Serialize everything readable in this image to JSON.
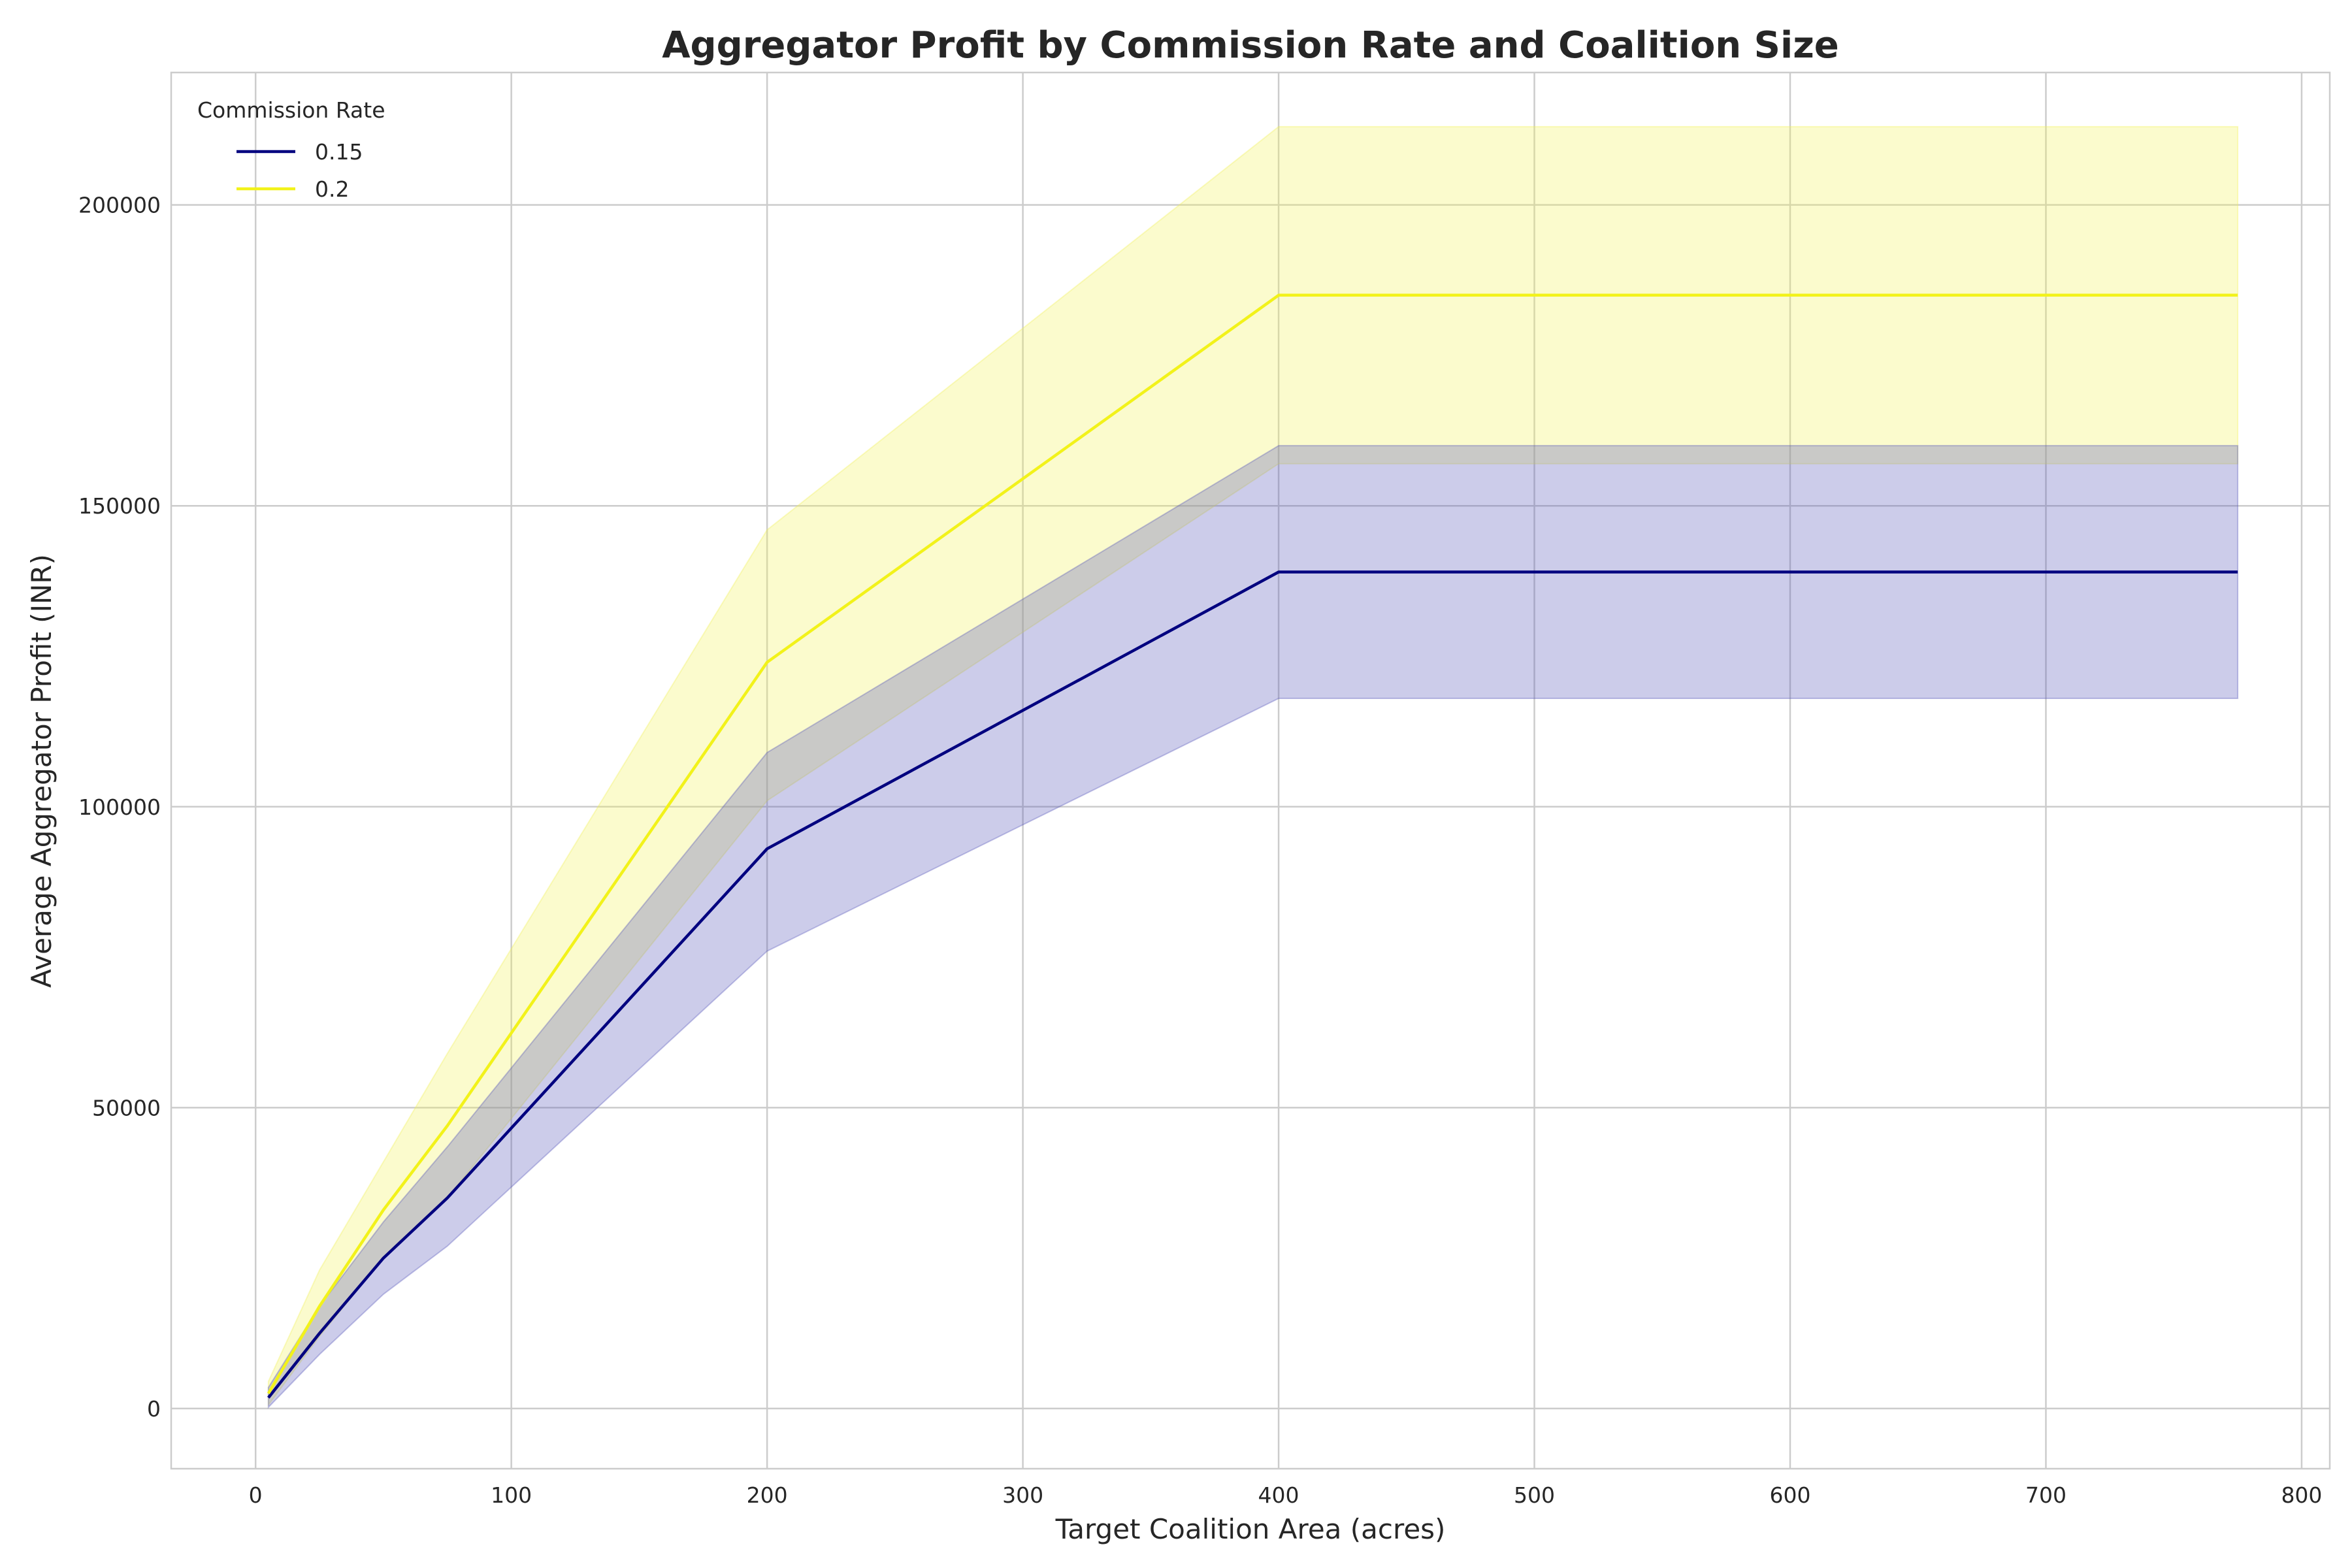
{
  "chart_data": {
    "type": "line",
    "title": "Aggregator Profit by Commission Rate and Coalition Size",
    "xlabel": "Target Coalition Area (acres)",
    "ylabel": "Average Aggregator Profit (INR)",
    "xlim": [
      -33,
      811
    ],
    "ylim": [
      -10000,
      222000
    ],
    "xticks": [
      0,
      100,
      200,
      300,
      400,
      500,
      600,
      700,
      800
    ],
    "yticks": [
      0,
      50000,
      100000,
      150000,
      200000
    ],
    "xtick_labels": [
      "0",
      "100",
      "200",
      "300",
      "400",
      "500",
      "600",
      "700",
      "800"
    ],
    "ytick_labels": [
      "0",
      "50000",
      "100000",
      "150000",
      "200000"
    ],
    "grid": true,
    "legend": {
      "title": "Commission Rate",
      "placement": "top-left"
    },
    "series": [
      {
        "name": "0.15",
        "color": "#00007f",
        "band_color": "#5555bb",
        "x": [
          5,
          25,
          50,
          75,
          200,
          400,
          775
        ],
        "y": [
          1800,
          12500,
          25000,
          35000,
          93000,
          139000,
          139000
        ],
        "lower": [
          200,
          9000,
          19000,
          27000,
          76000,
          118000,
          118000
        ],
        "upper": [
          3500,
          17000,
          31000,
          43500,
          109000,
          160000,
          160000
        ]
      },
      {
        "name": "0.2",
        "color": "#f2f21a",
        "band_color": "#f2f25a",
        "x": [
          5,
          25,
          50,
          75,
          200,
          400,
          775
        ],
        "y": [
          2500,
          17000,
          33000,
          47000,
          124000,
          185000,
          185000
        ],
        "lower": [
          600,
          12000,
          25000,
          35000,
          101000,
          157000,
          157000
        ],
        "upper": [
          4500,
          23000,
          41000,
          59000,
          146000,
          213000,
          213000
        ]
      }
    ]
  }
}
